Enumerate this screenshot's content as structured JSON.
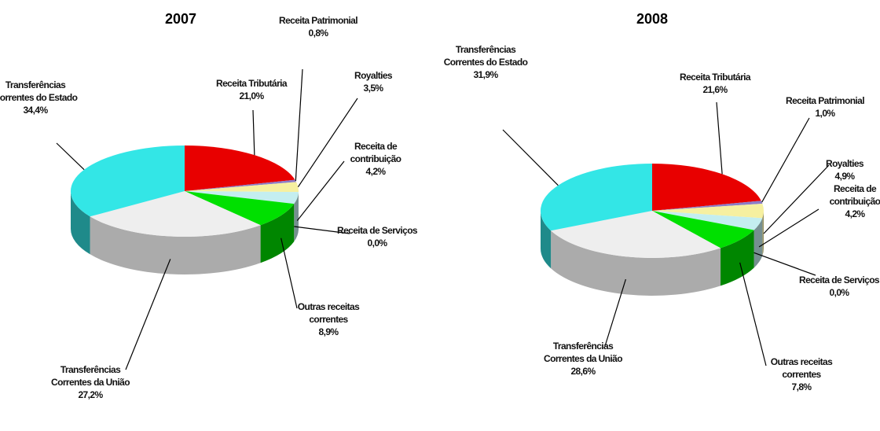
{
  "chart_data": [
    {
      "type": "pie3d",
      "title": "2007",
      "categories": [
        "Receita Tributária",
        "Receita Patrimonial",
        "Royalties",
        "Receita de contribuição",
        "Receita de Serviços",
        "Outras receitas correntes",
        "Transferências Correntes da União",
        "Transferências Correntes do Estado"
      ],
      "values": [
        21.0,
        0.8,
        3.5,
        4.2,
        0.0,
        8.9,
        27.2,
        34.4
      ],
      "value_labels": [
        "21,0%",
        "0,8%",
        "3,5%",
        "4,2%",
        "0,0%",
        "8,9%",
        "27,2%",
        "34,4%"
      ],
      "colors": [
        "#e80000",
        "#8c7cc8",
        "#f6f0a0",
        "#c4eef0",
        "#5050a0",
        "#00e000",
        "#eeeeee",
        "#33e6e6"
      ]
    },
    {
      "type": "pie3d",
      "title": "2008",
      "categories": [
        "Receita Tributária",
        "Receita Patrimonial",
        "Royalties",
        "Receita de contribuição",
        "Receita de Serviços",
        "Outras receitas correntes",
        "Transferências Correntes da União",
        "Transferências Correntes do Estado"
      ],
      "values": [
        21.6,
        1.0,
        4.9,
        4.2,
        0.0,
        7.8,
        28.6,
        31.9
      ],
      "value_labels": [
        "21,6%",
        "1,0%",
        "4,9%",
        "4,2%",
        "0,0%",
        "7,8%",
        "28,6%",
        "31,9%"
      ],
      "colors": [
        "#e80000",
        "#8c7cc8",
        "#f6f0a0",
        "#c4eef0",
        "#5050a0",
        "#00e000",
        "#eeeeee",
        "#33e6e6"
      ]
    }
  ]
}
